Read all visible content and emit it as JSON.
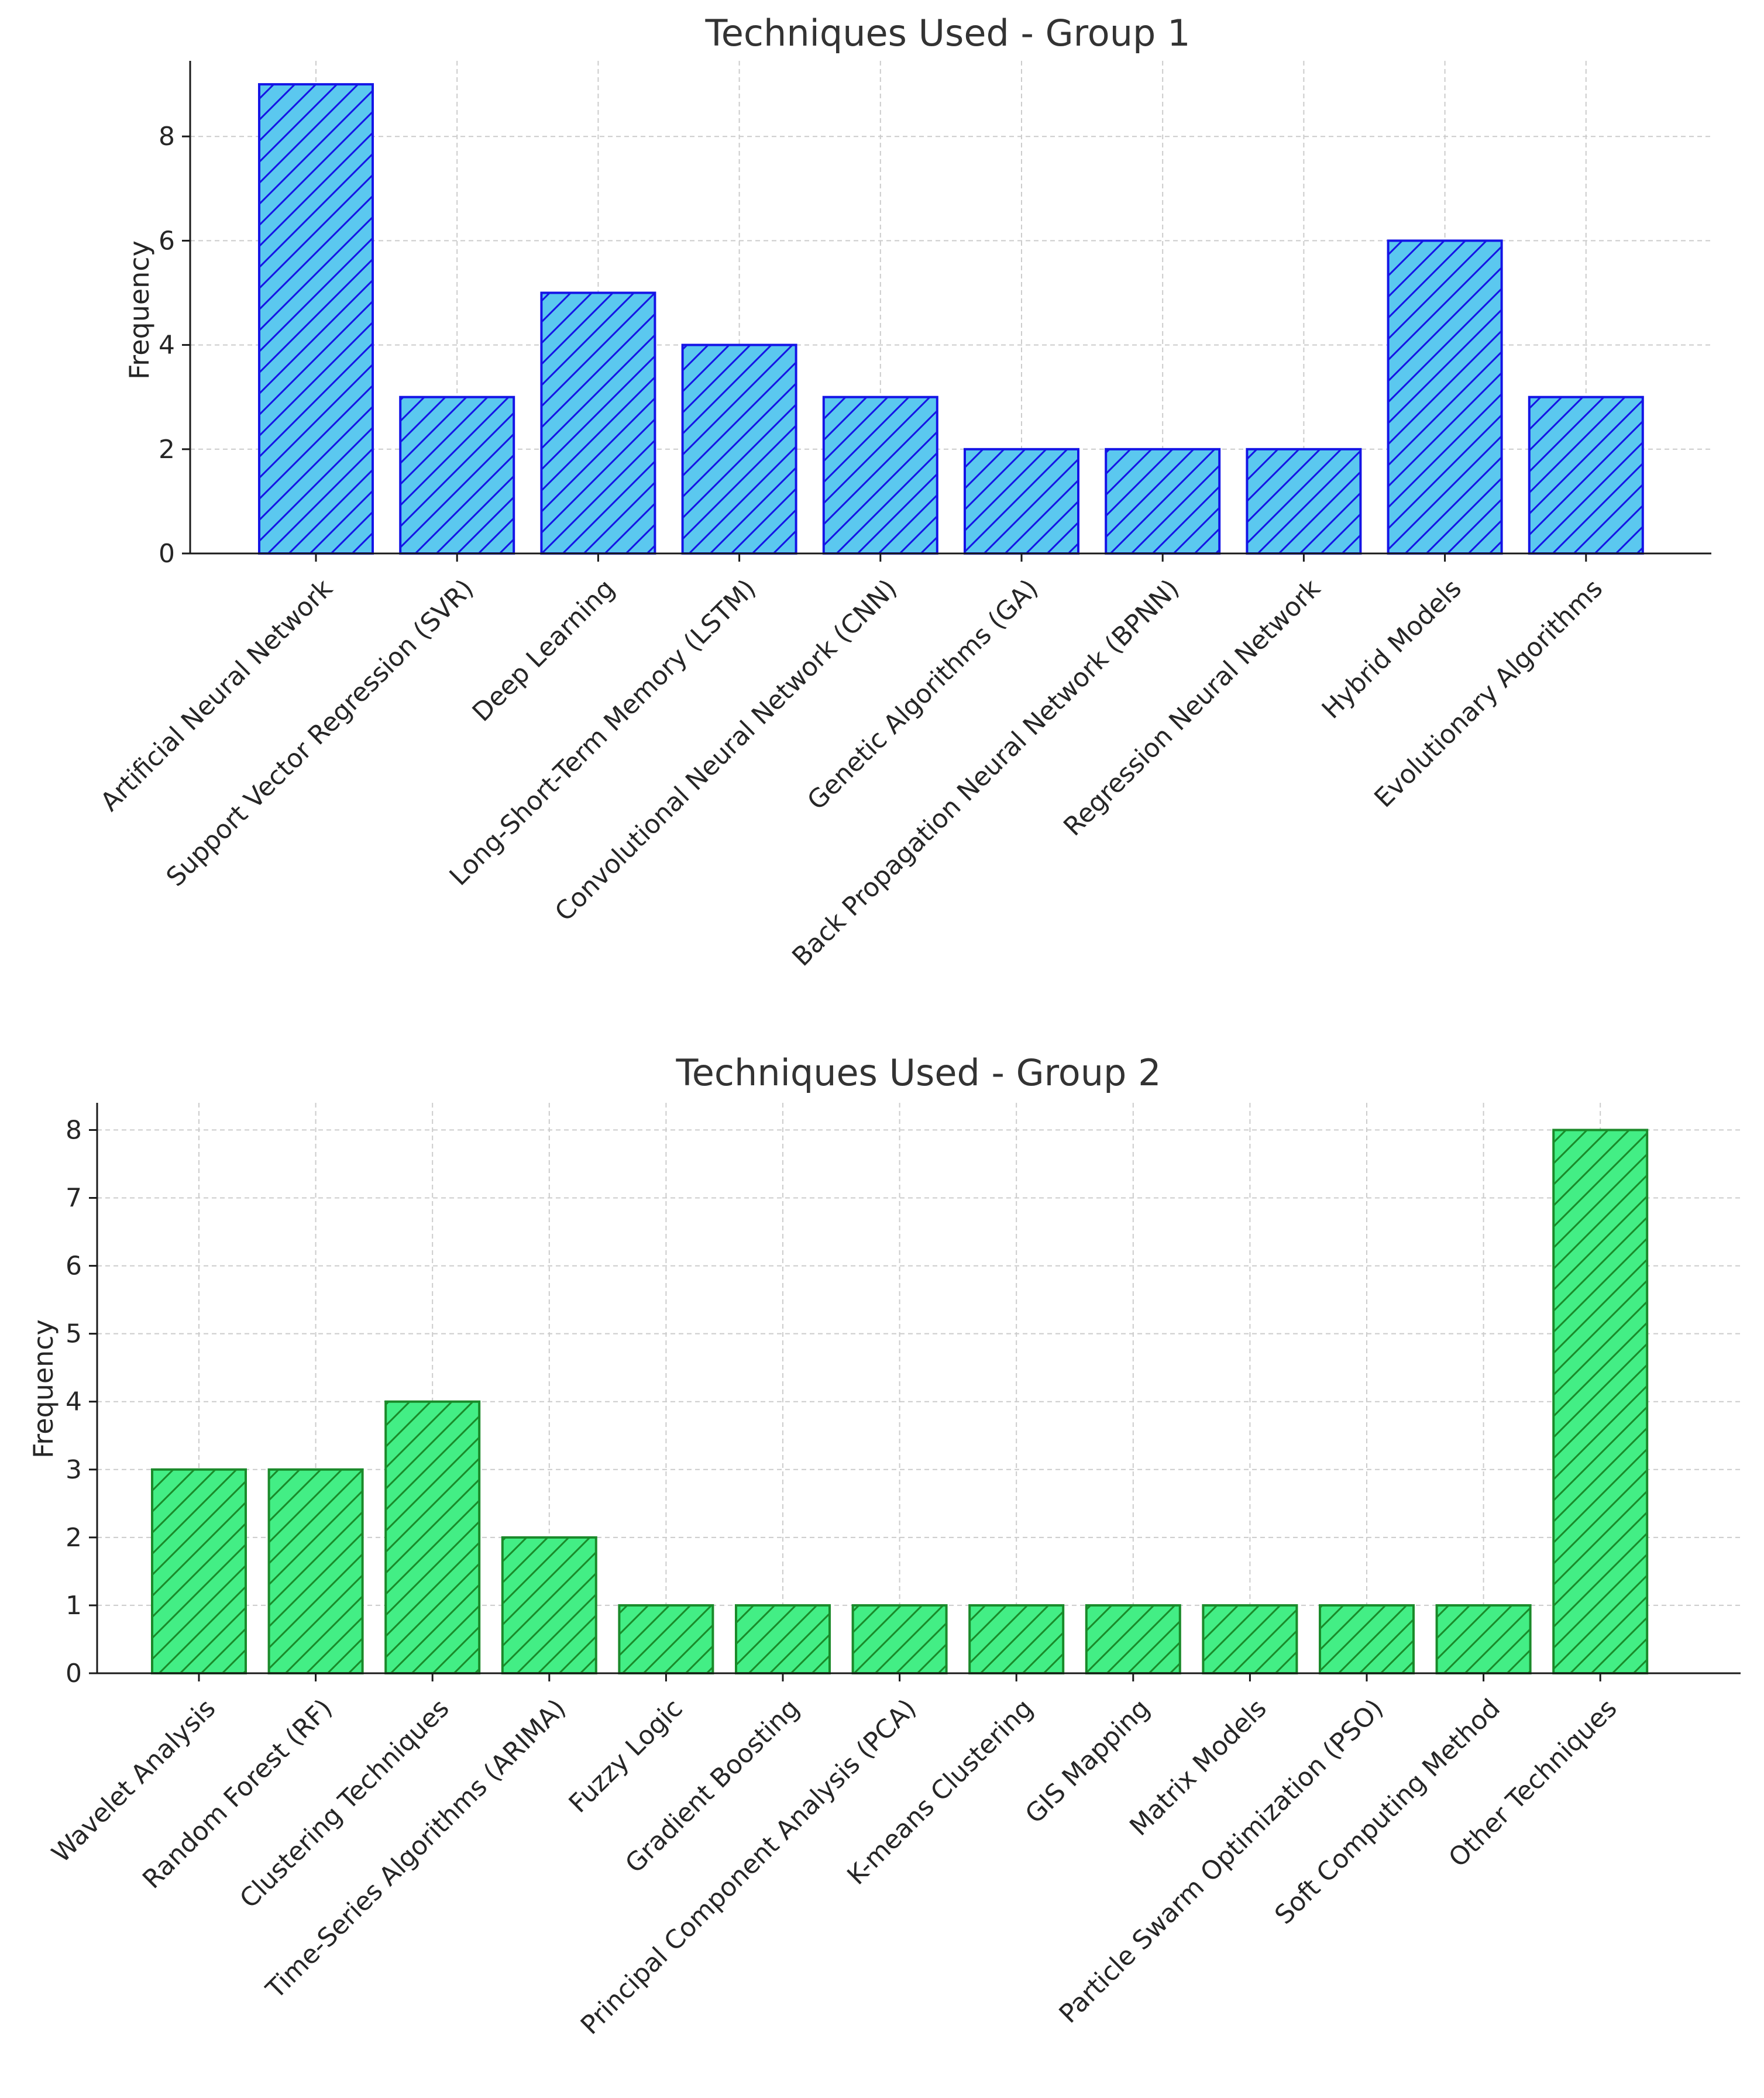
{
  "chart_data": [
    {
      "type": "bar",
      "title": "Techniques Used - Group 1",
      "xlabel": "",
      "ylabel": "Frequency",
      "ylim": [
        0,
        9.45
      ],
      "yticks": [
        0,
        2,
        4,
        6,
        8
      ],
      "grid": true,
      "bar_fill": "#5bc8ef",
      "bar_edge": "#1414e6",
      "hatch": "/",
      "categories": [
        "Artificial Neural Network",
        "Support Vector Regression (SVR)",
        "Deep Learning",
        "Long-Short-Term Memory (LSTM)",
        "Convolutional Neural Network (CNN)",
        "Genetic Algorithms (GA)",
        "Back Propagation Neural Network (BPNN)",
        "Regression Neural Network",
        "Hybrid Models",
        "Evolutionary Algorithms"
      ],
      "values": [
        9,
        3,
        5,
        4,
        3,
        2,
        2,
        2,
        6,
        3
      ]
    },
    {
      "type": "bar",
      "title": "Techniques Used - Group 2",
      "xlabel": "",
      "ylabel": "Frequency",
      "ylim": [
        0,
        8.4
      ],
      "yticks": [
        0,
        1,
        2,
        3,
        4,
        5,
        6,
        7,
        8
      ],
      "grid": true,
      "bar_fill": "#43ee85",
      "bar_edge": "#1a8a2a",
      "hatch": "/",
      "categories": [
        "Wavelet Analysis",
        "Random Forest (RF)",
        "Clustering Techniques",
        "Time-Series Algorithms (ARIMA)",
        "Fuzzy Logic",
        "Gradient Boosting",
        "Principal Component Analysis (PCA)",
        "K-means Clustering",
        "GIS Mapping",
        "Matrix Models",
        "Particle Swarm Optimization (PSO)",
        "Soft Computing Method",
        "Other Techniques"
      ],
      "values": [
        3,
        3,
        4,
        2,
        1,
        1,
        1,
        1,
        1,
        1,
        1,
        1,
        8
      ]
    }
  ]
}
